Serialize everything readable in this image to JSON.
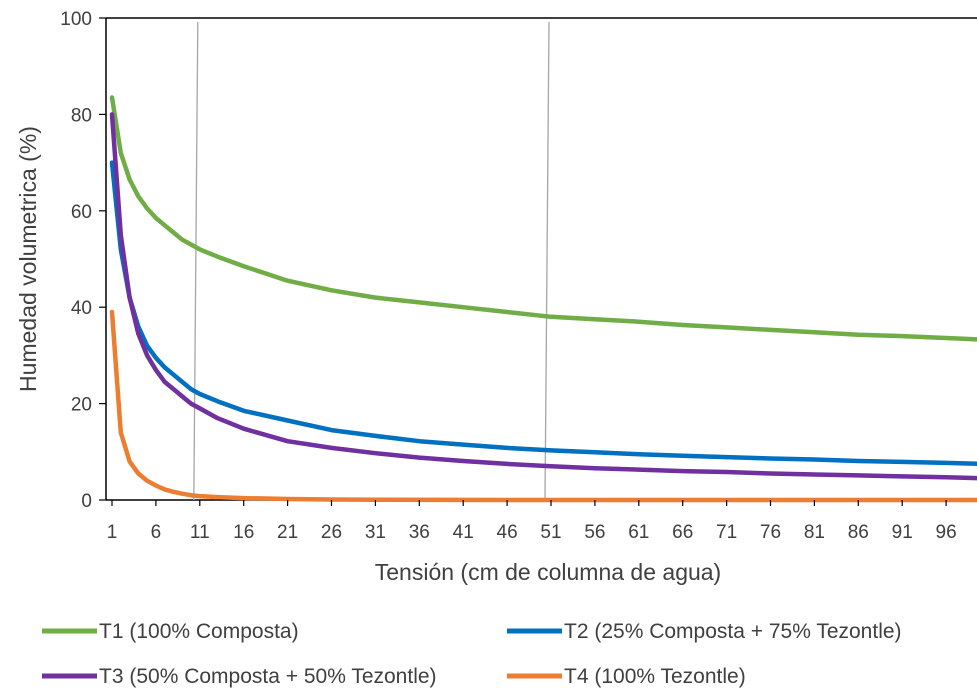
{
  "chart_data": {
    "type": "line",
    "title": "",
    "xlabel": "Tensión (cm de columna de agua)",
    "ylabel": "Humedad volumetrica (%)",
    "xlim": [
      1,
      100
    ],
    "ylim": [
      0,
      100
    ],
    "x_tick_labels": [
      "1",
      "6",
      "11",
      "16",
      "21",
      "26",
      "31",
      "36",
      "41",
      "46",
      "51",
      "56",
      "61",
      "66",
      "71",
      "76",
      "81",
      "86",
      "91",
      "96"
    ],
    "y_tick_labels": [
      "0",
      "20",
      "40",
      "60",
      "80",
      "100"
    ],
    "y_ticks": [
      0,
      20,
      40,
      60,
      80,
      100
    ],
    "reference_lines_x": [
      11,
      51
    ],
    "legend_position": "bottom",
    "grid": false,
    "series": [
      {
        "name": "T1 (100% Composta)",
        "color": "#70AD47",
        "points": [
          [
            1,
            83.5
          ],
          [
            2,
            72
          ],
          [
            3,
            66.5
          ],
          [
            4,
            63
          ],
          [
            5,
            60.5
          ],
          [
            6,
            58.5
          ],
          [
            7,
            57
          ],
          [
            8,
            55.5
          ],
          [
            9,
            54
          ],
          [
            10,
            53
          ],
          [
            11,
            52
          ],
          [
            13,
            50.5
          ],
          [
            16,
            48.5
          ],
          [
            21,
            45.5
          ],
          [
            26,
            43.5
          ],
          [
            31,
            42
          ],
          [
            36,
            41
          ],
          [
            41,
            40
          ],
          [
            46,
            39
          ],
          [
            51,
            38
          ],
          [
            56,
            37.5
          ],
          [
            61,
            37
          ],
          [
            66,
            36.3
          ],
          [
            71,
            35.8
          ],
          [
            76,
            35.3
          ],
          [
            81,
            34.8
          ],
          [
            86,
            34.3
          ],
          [
            91,
            34
          ],
          [
            96,
            33.6
          ],
          [
            100,
            33.3
          ]
        ]
      },
      {
        "name": "T2 (25% Composta + 75% Tezontle)",
        "color": "#0070C0",
        "points": [
          [
            1,
            70
          ],
          [
            2,
            52
          ],
          [
            3,
            42
          ],
          [
            4,
            36
          ],
          [
            5,
            32
          ],
          [
            6,
            29.5
          ],
          [
            7,
            27.5
          ],
          [
            8,
            26
          ],
          [
            9,
            24.5
          ],
          [
            10,
            23
          ],
          [
            11,
            22
          ],
          [
            13,
            20.5
          ],
          [
            16,
            18.5
          ],
          [
            21,
            16.5
          ],
          [
            26,
            14.5
          ],
          [
            31,
            13.3
          ],
          [
            36,
            12.2
          ],
          [
            41,
            11.5
          ],
          [
            46,
            10.8
          ],
          [
            51,
            10.3
          ],
          [
            56,
            9.9
          ],
          [
            61,
            9.5
          ],
          [
            66,
            9.2
          ],
          [
            71,
            8.9
          ],
          [
            76,
            8.6
          ],
          [
            81,
            8.4
          ],
          [
            86,
            8.1
          ],
          [
            91,
            7.9
          ],
          [
            96,
            7.7
          ],
          [
            100,
            7.5
          ]
        ]
      },
      {
        "name": "T3 (50% Composta + 50% Tezontle)",
        "color": "#7030A0",
        "points": [
          [
            1,
            80
          ],
          [
            2,
            55
          ],
          [
            3,
            42
          ],
          [
            4,
            34.5
          ],
          [
            5,
            30
          ],
          [
            6,
            27
          ],
          [
            7,
            24.5
          ],
          [
            8,
            23
          ],
          [
            9,
            21.5
          ],
          [
            10,
            20
          ],
          [
            11,
            19
          ],
          [
            13,
            17
          ],
          [
            16,
            14.8
          ],
          [
            21,
            12.2
          ],
          [
            26,
            10.8
          ],
          [
            31,
            9.7
          ],
          [
            36,
            8.8
          ],
          [
            41,
            8.1
          ],
          [
            46,
            7.5
          ],
          [
            51,
            7
          ],
          [
            56,
            6.6
          ],
          [
            61,
            6.3
          ],
          [
            66,
            6
          ],
          [
            71,
            5.8
          ],
          [
            76,
            5.5
          ],
          [
            81,
            5.3
          ],
          [
            86,
            5.1
          ],
          [
            91,
            4.9
          ],
          [
            96,
            4.7
          ],
          [
            100,
            4.5
          ]
        ]
      },
      {
        "name": "T4 (100% Tezontle)",
        "color": "#ED7D31",
        "points": [
          [
            1,
            39
          ],
          [
            2,
            14
          ],
          [
            3,
            8
          ],
          [
            4,
            5.5
          ],
          [
            5,
            4
          ],
          [
            6,
            3
          ],
          [
            7,
            2.2
          ],
          [
            8,
            1.7
          ],
          [
            9,
            1.3
          ],
          [
            10,
            1
          ],
          [
            11,
            0.8
          ],
          [
            13,
            0.6
          ],
          [
            16,
            0.4
          ],
          [
            21,
            0.2
          ],
          [
            26,
            0.1
          ],
          [
            31,
            0.05
          ],
          [
            51,
            0
          ],
          [
            100,
            0
          ]
        ]
      }
    ]
  }
}
